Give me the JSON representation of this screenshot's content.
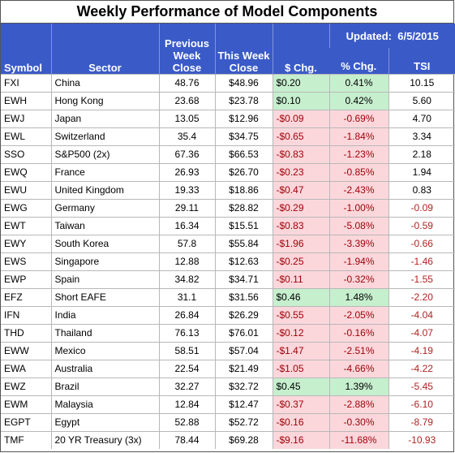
{
  "title": "Weekly Performance of Model Components",
  "updated_label": "Updated:",
  "updated_date": "6/5/2015",
  "columns": {
    "symbol": "Symbol",
    "sector": "Sector",
    "prev_l1": "Previous",
    "prev_l2": "Week",
    "prev_l3": "Close",
    "this_l1": "This Week",
    "this_l2": "Close",
    "chg": "$ Chg.",
    "pct": "% Chg.",
    "tsi": "TSI"
  },
  "rows": [
    {
      "symbol": "FXI",
      "sector": "China",
      "prev": "48.76",
      "this": "$48.96",
      "chg": "$0.20",
      "pct": "0.41%",
      "tsi": "10.15",
      "dir": "up"
    },
    {
      "symbol": "EWH",
      "sector": "Hong Kong",
      "prev": "23.68",
      "this": "$23.78",
      "chg": "$0.10",
      "pct": "0.42%",
      "tsi": "5.60",
      "dir": "up"
    },
    {
      "symbol": "EWJ",
      "sector": "Japan",
      "prev": "13.05",
      "this": "$12.96",
      "chg": "-$0.09",
      "pct": "-0.69%",
      "tsi": "4.70",
      "dir": "dn"
    },
    {
      "symbol": "EWL",
      "sector": "Switzerland",
      "prev": "35.4",
      "this": "$34.75",
      "chg": "-$0.65",
      "pct": "-1.84%",
      "tsi": "3.34",
      "dir": "dn"
    },
    {
      "symbol": "SSO",
      "sector": "S&P500 (2x)",
      "prev": "67.36",
      "this": "$66.53",
      "chg": "-$0.83",
      "pct": "-1.23%",
      "tsi": "2.18",
      "dir": "dn"
    },
    {
      "symbol": "EWQ",
      "sector": "France",
      "prev": "26.93",
      "this": "$26.70",
      "chg": "-$0.23",
      "pct": "-0.85%",
      "tsi": "1.94",
      "dir": "dn"
    },
    {
      "symbol": "EWU",
      "sector": "United Kingdom",
      "prev": "19.33",
      "this": "$18.86",
      "chg": "-$0.47",
      "pct": "-2.43%",
      "tsi": "0.83",
      "dir": "dn"
    },
    {
      "symbol": "EWG",
      "sector": "Germany",
      "prev": "29.11",
      "this": "$28.82",
      "chg": "-$0.29",
      "pct": "-1.00%",
      "tsi": "-0.09",
      "dir": "dn"
    },
    {
      "symbol": "EWT",
      "sector": "Taiwan",
      "prev": "16.34",
      "this": "$15.51",
      "chg": "-$0.83",
      "pct": "-5.08%",
      "tsi": "-0.59",
      "dir": "dn"
    },
    {
      "symbol": "EWY",
      "sector": "South Korea",
      "prev": "57.8",
      "this": "$55.84",
      "chg": "-$1.96",
      "pct": "-3.39%",
      "tsi": "-0.66",
      "dir": "dn"
    },
    {
      "symbol": "EWS",
      "sector": "Singapore",
      "prev": "12.88",
      "this": "$12.63",
      "chg": "-$0.25",
      "pct": "-1.94%",
      "tsi": "-1.46",
      "dir": "dn"
    },
    {
      "symbol": "EWP",
      "sector": "Spain",
      "prev": "34.82",
      "this": "$34.71",
      "chg": "-$0.11",
      "pct": "-0.32%",
      "tsi": "-1.55",
      "dir": "dn"
    },
    {
      "symbol": "EFZ",
      "sector": "Short EAFE",
      "prev": "31.1",
      "this": "$31.56",
      "chg": "$0.46",
      "pct": "1.48%",
      "tsi": "-2.20",
      "dir": "up"
    },
    {
      "symbol": "IFN",
      "sector": "India",
      "prev": "26.84",
      "this": "$26.29",
      "chg": "-$0.55",
      "pct": "-2.05%",
      "tsi": "-4.04",
      "dir": "dn"
    },
    {
      "symbol": "THD",
      "sector": "Thailand",
      "prev": "76.13",
      "this": "$76.01",
      "chg": "-$0.12",
      "pct": "-0.16%",
      "tsi": "-4.07",
      "dir": "dn"
    },
    {
      "symbol": "EWW",
      "sector": "Mexico",
      "prev": "58.51",
      "this": "$57.04",
      "chg": "-$1.47",
      "pct": "-2.51%",
      "tsi": "-4.19",
      "dir": "dn"
    },
    {
      "symbol": "EWA",
      "sector": "Australia",
      "prev": "22.54",
      "this": "$21.49",
      "chg": "-$1.05",
      "pct": "-4.66%",
      "tsi": "-4.22",
      "dir": "dn"
    },
    {
      "symbol": "EWZ",
      "sector": "Brazil",
      "prev": "32.27",
      "this": "$32.72",
      "chg": "$0.45",
      "pct": "1.39%",
      "tsi": "-5.45",
      "dir": "up"
    },
    {
      "symbol": "EWM",
      "sector": "Malaysia",
      "prev": "12.84",
      "this": "$12.47",
      "chg": "-$0.37",
      "pct": "-2.88%",
      "tsi": "-6.10",
      "dir": "dn"
    },
    {
      "symbol": "EGPT",
      "sector": "Egypt",
      "prev": "52.88",
      "this": "$52.72",
      "chg": "-$0.16",
      "pct": "-0.30%",
      "tsi": "-8.79",
      "dir": "dn"
    },
    {
      "symbol": "TMF",
      "sector": "20 YR Treasury  (3x)",
      "prev": "78.44",
      "this": "$69.28",
      "chg": "-$9.16",
      "pct": "-11.68%",
      "tsi": "-10.93",
      "dir": "dn"
    }
  ]
}
